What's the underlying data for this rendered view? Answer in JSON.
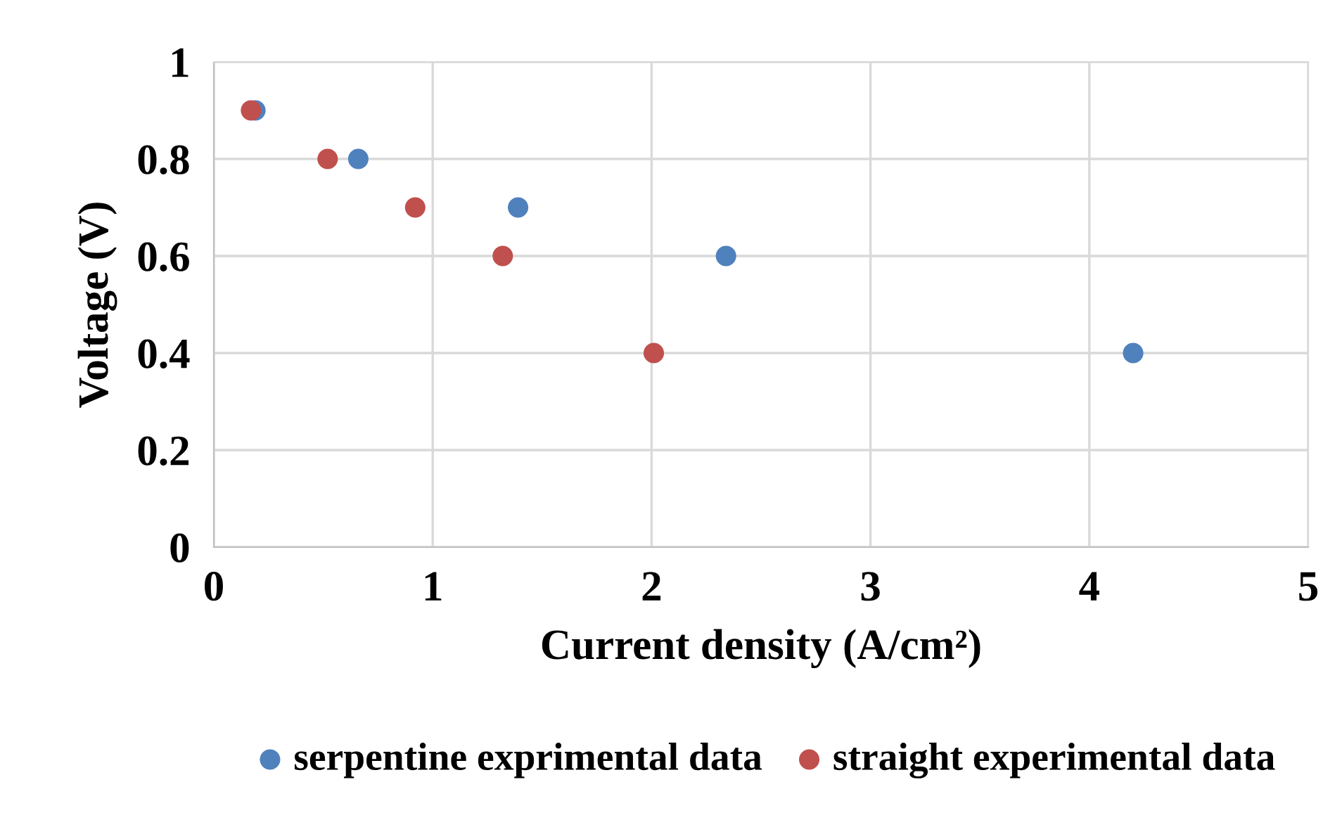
{
  "chart_data": {
    "type": "scatter",
    "xlabel": "Current density (A/cm²)",
    "ylabel": "Voltage (V)",
    "xlim": [
      0,
      5
    ],
    "xticks": [
      0,
      1,
      2,
      3,
      4,
      5
    ],
    "ylim": [
      0,
      1
    ],
    "yticks": [
      0,
      {
        "value": 0.2,
        "label": "0.2"
      },
      {
        "value": 0.4,
        "label": "0.4"
      },
      {
        "value": 0.6,
        "label": "0.6"
      },
      {
        "value": 0.8,
        "label": "0.8"
      },
      1
    ],
    "grid": true,
    "legend": "bottom",
    "marker": "circle",
    "series": [
      {
        "name": "serpentine exprimental data",
        "color": "#4f81bd",
        "x": [
          0.19,
          0.66,
          1.39,
          2.34,
          4.2
        ],
        "values": [
          0.9,
          0.8,
          0.7,
          0.6,
          0.4
        ]
      },
      {
        "name": "straight experimental data",
        "color": "#c0504d",
        "x": [
          0.17,
          0.52,
          0.92,
          1.32,
          2.01
        ],
        "values": [
          0.9,
          0.8,
          0.7,
          0.6,
          0.4
        ]
      }
    ]
  }
}
